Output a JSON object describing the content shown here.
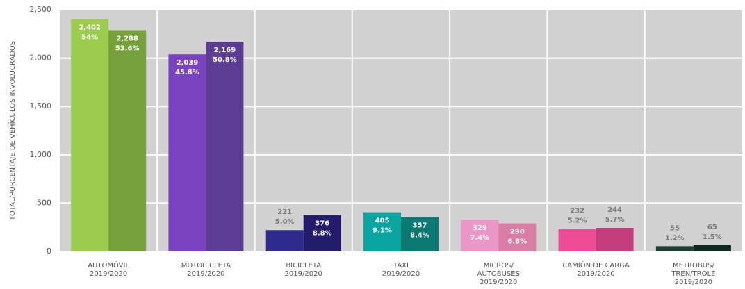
{
  "chart_data": {
    "type": "bar",
    "y_label": "TOTAL/PORCENTAJE DE VEHÍCULOS INVOLUCRADOS",
    "categories": [
      [
        "AUTOMÓVIL",
        "2019/2020"
      ],
      [
        "MOTOCICLETA",
        "2019/2020"
      ],
      [
        "BICICLETA",
        "2019/2020"
      ],
      [
        "TAXI",
        "2019/2020"
      ],
      [
        "MICROS/",
        "AUTOBUSES",
        "2019/2020"
      ],
      [
        "CAMIÓN DE CARGA",
        "2019/2020"
      ],
      [
        "METROBÚS/",
        "TREN/TROLE",
        "2019/2020"
      ]
    ],
    "series": [
      {
        "colors": [
          "#9ccc4e",
          "#7a44c0",
          "#2f2a8d",
          "#0aa5a0",
          "#ea96c6",
          "#ee4c96",
          "#1b3d2e"
        ],
        "values": [
          2402,
          2039,
          221,
          405,
          329,
          232,
          55
        ],
        "value_labels": [
          "2,402",
          "2,039",
          "221",
          "405",
          "329",
          "232",
          "55"
        ],
        "percent_labels": [
          "54%",
          "45.8%",
          "5.0%",
          "9.1%",
          "7.4%",
          "5.2%",
          "1.2%"
        ]
      },
      {
        "colors": [
          "#76a03a",
          "#5b3e91",
          "#221c6b",
          "#0a7a72",
          "#d97da4",
          "#c43d7e",
          "#0e2a1f"
        ],
        "values": [
          2288,
          2169,
          376,
          357,
          290,
          244,
          65
        ],
        "value_labels": [
          "2,288",
          "2,169",
          "376",
          "357",
          "290",
          "244",
          "65"
        ],
        "percent_labels": [
          "53.6%",
          "50.8%",
          "8.8%",
          "8.4%",
          "6.8%",
          "5.7%",
          "1.5%"
        ]
      }
    ],
    "ylim": [
      0,
      2500
    ],
    "yticks": [
      0,
      500,
      {
        "value": 1000,
        "label": "1,000"
      },
      {
        "value": 1500,
        "label": "1,500"
      },
      {
        "value": 2000,
        "label": "2,000"
      },
      {
        "value": 2500,
        "label": "2,500"
      }
    ],
    "grid": true,
    "background": "#d1d1d1",
    "grid_color": "#ffffff"
  }
}
